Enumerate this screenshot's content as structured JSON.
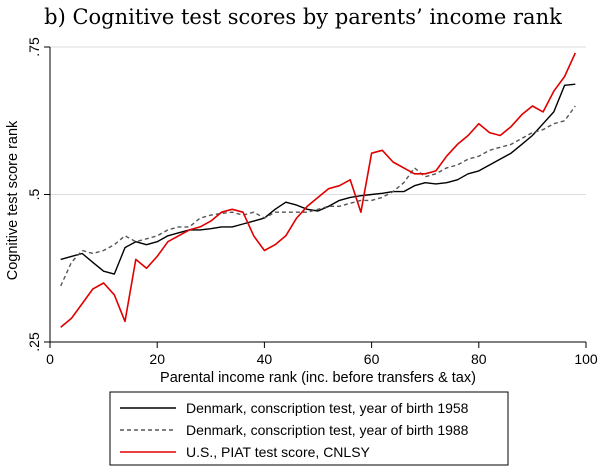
{
  "chart_data": {
    "type": "line",
    "title": "b) Cognitive test scores by parents’ income rank",
    "xlabel": "Parental income rank (inc. before transfers & tax)",
    "ylabel": "Cognitive test score rank",
    "xlim": [
      0,
      100
    ],
    "ylim": [
      0.25,
      0.75
    ],
    "xticks": [
      0,
      20,
      40,
      60,
      80,
      100
    ],
    "yticks": [
      0.25,
      0.5,
      0.75
    ],
    "xtick_labels": [
      "0",
      "20",
      "40",
      "60",
      "80",
      "100"
    ],
    "ytick_labels": [
      ".25",
      ".5",
      ".75"
    ],
    "grid": "horizontal",
    "legend_position": "bottom",
    "series": [
      {
        "name": "Denmark, conscription test, year of birth 1958",
        "color": "#000000",
        "dash": "solid",
        "x": [
          2,
          4,
          6,
          8,
          10,
          12,
          14,
          16,
          18,
          20,
          22,
          24,
          26,
          28,
          30,
          32,
          34,
          36,
          38,
          40,
          42,
          44,
          46,
          48,
          50,
          52,
          54,
          56,
          58,
          60,
          62,
          64,
          66,
          68,
          70,
          72,
          74,
          76,
          78,
          80,
          82,
          84,
          86,
          88,
          90,
          92,
          94,
          96,
          98
        ],
        "values": [
          0.39,
          0.395,
          0.4,
          0.385,
          0.37,
          0.365,
          0.41,
          0.42,
          0.415,
          0.42,
          0.43,
          0.435,
          0.44,
          0.44,
          0.442,
          0.445,
          0.445,
          0.45,
          0.455,
          0.46,
          0.475,
          0.487,
          0.482,
          0.475,
          0.472,
          0.48,
          0.49,
          0.495,
          0.498,
          0.5,
          0.502,
          0.505,
          0.505,
          0.515,
          0.52,
          0.518,
          0.52,
          0.525,
          0.535,
          0.54,
          0.55,
          0.56,
          0.57,
          0.585,
          0.6,
          0.62,
          0.64,
          0.685,
          0.687
        ]
      },
      {
        "name": "Denmark, conscription test, year of birth 1988",
        "color": "#555555",
        "dash": "dashed",
        "x": [
          2,
          4,
          6,
          8,
          10,
          12,
          14,
          16,
          18,
          20,
          22,
          24,
          26,
          28,
          30,
          32,
          34,
          36,
          38,
          40,
          42,
          44,
          46,
          48,
          50,
          52,
          54,
          56,
          58,
          60,
          62,
          64,
          66,
          68,
          70,
          72,
          74,
          76,
          78,
          80,
          82,
          84,
          86,
          88,
          90,
          92,
          94,
          96,
          98
        ],
        "values": [
          0.345,
          0.385,
          0.405,
          0.4,
          0.405,
          0.415,
          0.43,
          0.42,
          0.425,
          0.43,
          0.44,
          0.445,
          0.445,
          0.46,
          0.465,
          0.468,
          0.47,
          0.465,
          0.47,
          0.46,
          0.47,
          0.47,
          0.47,
          0.47,
          0.475,
          0.48,
          0.48,
          0.485,
          0.49,
          0.49,
          0.495,
          0.505,
          0.52,
          0.545,
          0.53,
          0.535,
          0.545,
          0.55,
          0.56,
          0.565,
          0.575,
          0.58,
          0.585,
          0.595,
          0.605,
          0.61,
          0.62,
          0.625,
          0.65
        ]
      },
      {
        "name": "U.S., PIAT test score, CNLSY",
        "color": "#e00000",
        "dash": "solid",
        "x": [
          2,
          4,
          6,
          8,
          10,
          12,
          14,
          16,
          18,
          20,
          22,
          24,
          26,
          28,
          30,
          32,
          34,
          36,
          38,
          40,
          42,
          44,
          46,
          48,
          50,
          52,
          54,
          56,
          58,
          60,
          62,
          64,
          66,
          68,
          70,
          72,
          74,
          76,
          78,
          80,
          82,
          84,
          86,
          88,
          90,
          92,
          94,
          96,
          98
        ],
        "values": [
          0.275,
          0.29,
          0.315,
          0.34,
          0.35,
          0.33,
          0.285,
          0.39,
          0.375,
          0.395,
          0.42,
          0.43,
          0.44,
          0.445,
          0.455,
          0.47,
          0.475,
          0.47,
          0.43,
          0.405,
          0.415,
          0.43,
          0.46,
          0.48,
          0.495,
          0.51,
          0.515,
          0.525,
          0.47,
          0.57,
          0.575,
          0.555,
          0.545,
          0.535,
          0.535,
          0.54,
          0.565,
          0.585,
          0.6,
          0.62,
          0.605,
          0.6,
          0.615,
          0.635,
          0.65,
          0.64,
          0.675,
          0.7,
          0.74
        ]
      }
    ]
  }
}
